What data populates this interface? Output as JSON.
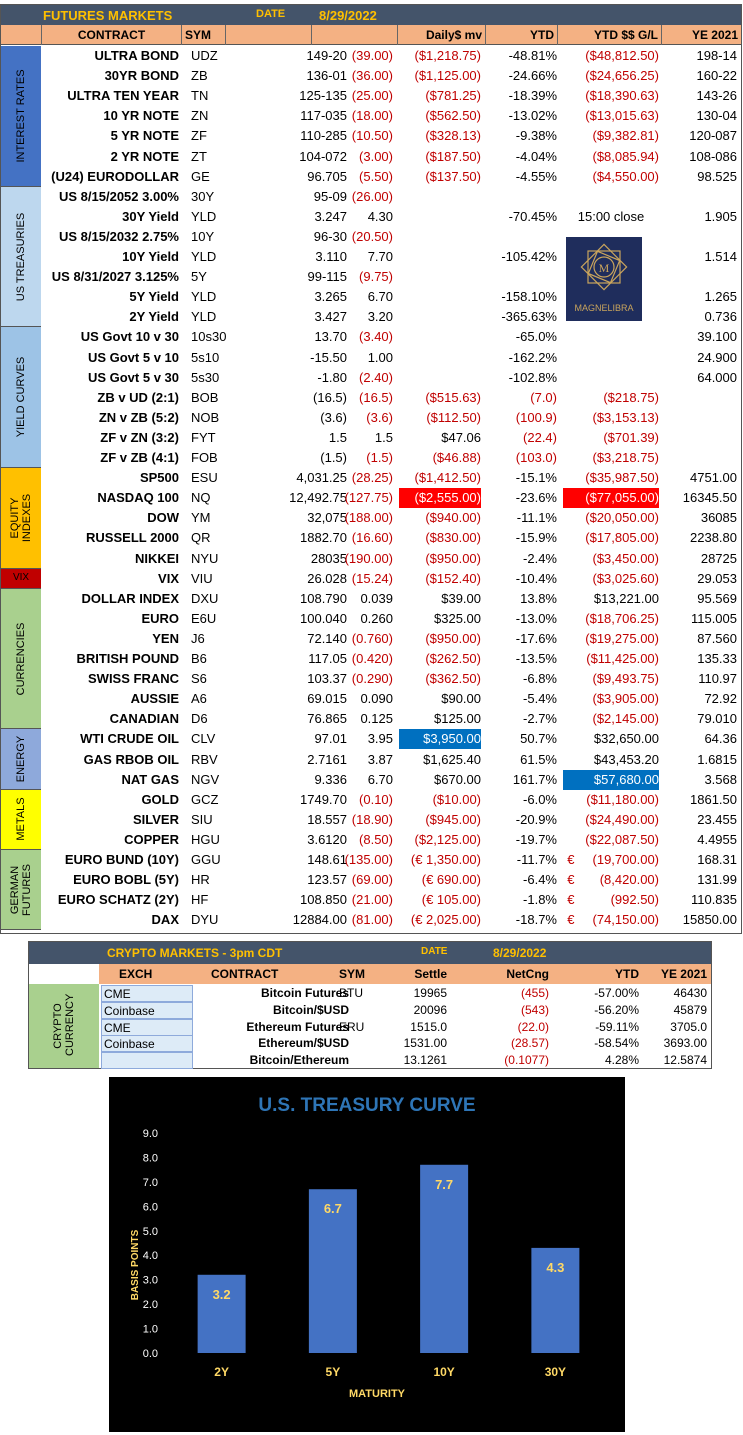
{
  "futures": {
    "title": "FUTURES MARKETS",
    "date_label": "DATE",
    "date": "8/29/2022",
    "headers": [
      "CONTRACT",
      "SYM",
      "",
      "",
      "Daily$ mv",
      "YTD",
      "YTD $$ G/L",
      "YE 2021"
    ],
    "sections": [
      {
        "label": "INTEREST RATES",
        "color": "#4472c4",
        "start": 0,
        "rows": 7
      },
      {
        "label": "US TREASURIES",
        "color": "#bdd7ee",
        "start": 7,
        "rows": 7
      },
      {
        "label": "YIELD CURVES",
        "color": "#9dc3e6",
        "start": 14,
        "rows": 7
      },
      {
        "label": "EQUITY INDEXES",
        "color": "#ffc000",
        "start": 21,
        "rows": 5
      },
      {
        "label": "VIX",
        "color": "#c00000",
        "start": 26,
        "rows": 1
      },
      {
        "label": "CURRENCIES",
        "color": "#a9d08e",
        "start": 27,
        "rows": 7
      },
      {
        "label": "ENERGY",
        "color": "#8ea9db",
        "start": 34,
        "rows": 3
      },
      {
        "label": "METALS",
        "color": "#ffff00",
        "start": 37,
        "rows": 3
      },
      {
        "label": "GERMAN FUTURES",
        "color": "#a9d08e",
        "start": 40,
        "rows": 4
      }
    ],
    "rows": [
      [
        "ULTRA BOND",
        "UDZ",
        "149-20",
        "(39.00)",
        "($1,218.75)",
        "-48.81%",
        "($48,812.50)",
        "198-14"
      ],
      [
        "30YR BOND",
        "ZB",
        "136-01",
        "(36.00)",
        "($1,125.00)",
        "-24.66%",
        "($24,656.25)",
        "160-22"
      ],
      [
        "ULTRA TEN YEAR",
        "TN",
        "125-135",
        "(25.00)",
        "($781.25)",
        "-18.39%",
        "($18,390.63)",
        "143-26"
      ],
      [
        "10 YR NOTE",
        "ZN",
        "117-035",
        "(18.00)",
        "($562.50)",
        "-13.02%",
        "($13,015.63)",
        "130-04"
      ],
      [
        "5 YR NOTE",
        "ZF",
        "110-285",
        "(10.50)",
        "($328.13)",
        "-9.38%",
        "($9,382.81)",
        "120-087"
      ],
      [
        "2 YR NOTE",
        "ZT",
        "104-072",
        "(3.00)",
        "($187.50)",
        "-4.04%",
        "($8,085.94)",
        "108-086"
      ],
      [
        "(U24) EURODOLLAR",
        "GE",
        "96.705",
        "(5.50)",
        "($137.50)",
        "-4.55%",
        "($4,550.00)",
        "98.525"
      ],
      [
        "US 8/15/2052 3.00%",
        "30Y",
        "95-09",
        "(26.00)",
        "",
        "",
        "",
        ""
      ],
      [
        "30Y Yield",
        "YLD",
        "3.247",
        "4.30",
        "",
        "-70.45%",
        "15:00 close",
        "1.905"
      ],
      [
        "US 8/15/2032 2.75%",
        "10Y",
        "96-30",
        "(20.50)",
        "",
        "",
        "",
        ""
      ],
      [
        "10Y Yield",
        "YLD",
        "3.110",
        "7.70",
        "",
        "-105.42%",
        "",
        "1.514"
      ],
      [
        "US 8/31/2027 3.125%",
        "5Y",
        "99-115",
        "(9.75)",
        "",
        "",
        "",
        ""
      ],
      [
        "5Y Yield",
        "YLD",
        "3.265",
        "6.70",
        "",
        "-158.10%",
        "",
        "1.265"
      ],
      [
        "2Y Yield",
        "YLD",
        "3.427",
        "3.20",
        "",
        "-365.63%",
        "",
        "0.736"
      ],
      [
        "US Govt 10 v 30",
        "10s30",
        "13.70",
        "(3.40)",
        "",
        "-65.0%",
        "",
        "39.100"
      ],
      [
        "US Govt 5 v 10",
        "5s10",
        "-15.50",
        "1.00",
        "",
        "-162.2%",
        "",
        "24.900"
      ],
      [
        "US Govt 5 v 30",
        "5s30",
        "-1.80",
        "(2.40)",
        "",
        "-102.8%",
        "",
        "64.000"
      ],
      [
        "ZB v UD (2:1)",
        "BOB",
        "(16.5)",
        "(16.5)",
        "($515.63)",
        "(7.0)",
        "($218.75)",
        ""
      ],
      [
        "ZN v ZB (5:2)",
        "NOB",
        "(3.6)",
        "(3.6)",
        "($112.50)",
        "(100.9)",
        "($3,153.13)",
        ""
      ],
      [
        "ZF v ZN (3:2)",
        "FYT",
        "1.5",
        "1.5",
        "$47.06",
        "(22.4)",
        "($701.39)",
        ""
      ],
      [
        "ZF v ZB (4:1)",
        "FOB",
        "(1.5)",
        "(1.5)",
        "($46.88)",
        "(103.0)",
        "($3,218.75)",
        ""
      ],
      [
        "SP500",
        "ESU",
        "4,031.25",
        "(28.25)",
        "($1,412.50)",
        "-15.1%",
        "($35,987.50)",
        "4751.00"
      ],
      [
        "NASDAQ 100",
        "NQ",
        "12,492.75",
        "(127.75)",
        "($2,555.00)",
        "-23.6%",
        "($77,055.00)",
        "16345.50"
      ],
      [
        "DOW",
        "YM",
        "32,075",
        "(188.00)",
        "($940.00)",
        "-11.1%",
        "($20,050.00)",
        "36085"
      ],
      [
        "RUSSELL 2000",
        "QR",
        "1882.70",
        "(16.60)",
        "($830.00)",
        "-15.9%",
        "($17,805.00)",
        "2238.80"
      ],
      [
        "NIKKEI",
        "NYU",
        "28035",
        "(190.00)",
        "($950.00)",
        "-2.4%",
        "($3,450.00)",
        "28725"
      ],
      [
        "VIX",
        "VIU",
        "26.028",
        "(15.24)",
        "($152.40)",
        "-10.4%",
        "($3,025.60)",
        "29.053"
      ],
      [
        "DOLLAR INDEX",
        "DXU",
        "108.790",
        "0.039",
        "$39.00",
        "13.8%",
        "$13,221.00",
        "95.569"
      ],
      [
        "EURO",
        "E6U",
        "100.040",
        "0.260",
        "$325.00",
        "-13.0%",
        "($18,706.25)",
        "115.005"
      ],
      [
        "YEN",
        "J6",
        "72.140",
        "(0.760)",
        "($950.00)",
        "-17.6%",
        "($19,275.00)",
        "87.560"
      ],
      [
        "BRITISH POUND",
        "B6",
        "117.05",
        "(0.420)",
        "($262.50)",
        "-13.5%",
        "($11,425.00)",
        "135.33"
      ],
      [
        "SWISS FRANC",
        "S6",
        "103.37",
        "(0.290)",
        "($362.50)",
        "-6.8%",
        "($9,493.75)",
        "110.97"
      ],
      [
        "AUSSIE",
        "A6",
        "69.015",
        "0.090",
        "$90.00",
        "-5.4%",
        "($3,905.00)",
        "72.92"
      ],
      [
        "CANADIAN",
        "D6",
        "76.865",
        "0.125",
        "$125.00",
        "-2.7%",
        "($2,145.00)",
        "79.010"
      ],
      [
        "WTI CRUDE OIL",
        "CLV",
        "97.01",
        "3.95",
        "$3,950.00",
        "50.7%",
        "$32,650.00",
        "64.36"
      ],
      [
        "GAS RBOB OIL",
        "RBV",
        "2.7161",
        "3.87",
        "$1,625.40",
        "61.5%",
        "$43,453.20",
        "1.6815"
      ],
      [
        "NAT GAS",
        "NGV",
        "9.336",
        "6.70",
        "$670.00",
        "161.7%",
        "$57,680.00",
        "3.568"
      ],
      [
        "GOLD",
        "GCZ",
        "1749.70",
        "(0.10)",
        "($10.00)",
        "-6.0%",
        "($11,180.00)",
        "1861.50"
      ],
      [
        "SILVER",
        "SIU",
        "18.557",
        "(18.90)",
        "($945.00)",
        "-20.9%",
        "($24,490.00)",
        "23.455"
      ],
      [
        "COPPER",
        "HGU",
        "3.6120",
        "(8.50)",
        "($2,125.00)",
        "-19.7%",
        "($22,087.50)",
        "4.4955"
      ],
      [
        "EURO BUND (10Y)",
        "GGU",
        "148.61",
        "(135.00)",
        "(€ 1,350.00)",
        "-11.7%",
        "€     (19,700.00)",
        "168.31"
      ],
      [
        "EURO BOBL (5Y)",
        "HR",
        "123.57",
        "(69.00)",
        "(€ 690.00)",
        "-6.4%",
        "€       (8,420.00)",
        "131.99"
      ],
      [
        "EURO SCHATZ (2Y)",
        "HF",
        "108.850",
        "(21.00)",
        "(€ 105.00)",
        "-1.8%",
        "€          (992.50)",
        "110.835"
      ],
      [
        "DAX",
        "DYU",
        "12884.00",
        "(81.00)",
        "(€ 2,025.00)",
        "-18.7%",
        "€     (74,150.00)",
        "15850.00"
      ]
    ],
    "logo_text": "MAGNELIBRA",
    "highlight_red": [
      [
        22,
        4
      ],
      [
        22,
        6
      ]
    ],
    "highlight_blue": [
      [
        34,
        4
      ],
      [
        36,
        6
      ]
    ]
  },
  "crypto": {
    "title": "CRYPTO MARKETS - 3pm CDT",
    "date_label": "DATE",
    "date": "8/29/2022",
    "headers": [
      "EXCH",
      "CONTRACT",
      "SYM",
      "Settle",
      "NetCng",
      "YTD",
      "YE 2021"
    ],
    "section_label": "CRYPTO CURRENCY",
    "rows": [
      [
        "CME",
        "Bitcoin Futures",
        "BTU",
        "19965",
        "(455)",
        "-57.00%",
        "46430"
      ],
      [
        "Coinbase",
        "Bitcoin/$USD",
        "",
        "20096",
        "(543)",
        "-56.20%",
        "45879"
      ],
      [
        "CME",
        "Ethereum Futures",
        "ERU",
        "1515.0",
        "(22.0)",
        "-59.11%",
        "3705.0"
      ],
      [
        "Coinbase",
        "Ethereum/$USD",
        "",
        "1531.00",
        "(28.57)",
        "-58.54%",
        "3693.00"
      ],
      [
        "",
        "Bitcoin/Ethereum",
        "",
        "13.1261",
        "(0.1077)",
        "4.28%",
        "12.5874"
      ]
    ]
  },
  "chart_data": {
    "type": "bar",
    "title": "U.S. TREASURY  CURVE",
    "categories": [
      "2Y",
      "5Y",
      "10Y",
      "30Y"
    ],
    "values": [
      3.2,
      6.7,
      7.7,
      4.3
    ],
    "data_labels": [
      "3.2",
      "6.7",
      "7.7",
      "4.3"
    ],
    "xlabel": "MATURITY",
    "ylabel": "BASIS POINTS",
    "ylim": [
      0,
      9
    ],
    "yticks": [
      "0.0",
      "1.0",
      "2.0",
      "3.0",
      "4.0",
      "5.0",
      "6.0",
      "7.0",
      "8.0",
      "9.0"
    ],
    "grid": false,
    "colors": {
      "bar": "#4472c4",
      "background": "#000000",
      "title": "#2e75b6",
      "labels": "#ffd966"
    }
  }
}
